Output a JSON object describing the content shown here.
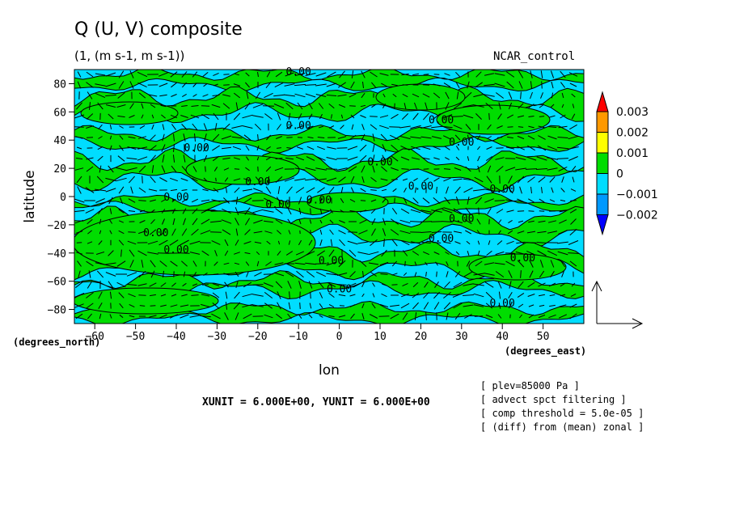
{
  "chart_data": {
    "type": "contour",
    "title": "Q (U, V) composite",
    "subtitle": "(1, (m s-1, m s-1))",
    "dataset": "NCAR_control",
    "xlabel": "lon",
    "ylabel": "latitude",
    "x_unit_label": "(degrees_east)",
    "y_unit_label": "(degrees_north)",
    "xlim": [
      -65,
      60
    ],
    "ylim": [
      -90,
      90
    ],
    "x_ticks": [
      -60,
      -50,
      -40,
      -30,
      -20,
      -10,
      0,
      10,
      20,
      30,
      40,
      50
    ],
    "y_ticks": [
      -80,
      -60,
      -40,
      -20,
      0,
      20,
      40,
      60,
      80
    ],
    "colorbar": {
      "levels": [
        "0.003",
        "0.002",
        "0.001",
        "0",
        "-0.001",
        "-0.002"
      ],
      "colors": [
        "#ff0000",
        "#ff9900",
        "#ffff00",
        "#00dd00",
        "#00ddff",
        "#0099ff",
        "#0000ff"
      ]
    },
    "contour_label": "0.00",
    "contour_label_points": [
      {
        "x": -10,
        "y": 86
      },
      {
        "x": 25,
        "y": 52
      },
      {
        "x": -10,
        "y": 48
      },
      {
        "x": 30,
        "y": 36
      },
      {
        "x": -35,
        "y": 32
      },
      {
        "x": 10,
        "y": 22
      },
      {
        "x": -20,
        "y": 8
      },
      {
        "x": 20,
        "y": 5
      },
      {
        "x": 40,
        "y": 3
      },
      {
        "x": -40,
        "y": -3
      },
      {
        "x": -15,
        "y": -8
      },
      {
        "x": -5,
        "y": -5
      },
      {
        "x": 30,
        "y": -18
      },
      {
        "x": -45,
        "y": -28
      },
      {
        "x": 25,
        "y": -32
      },
      {
        "x": -40,
        "y": -40
      },
      {
        "x": -2,
        "y": -48
      },
      {
        "x": 45,
        "y": -46
      },
      {
        "x": 0,
        "y": -68
      },
      {
        "x": 40,
        "y": -78
      }
    ],
    "vector_reference": {
      "xunit": 6.0,
      "yunit": 6.0
    },
    "xunit_note": "XUNIT = 6.000E+00, YUNIT = 6.000E+00",
    "notes": [
      "[ plev=85000 Pa ]",
      "[ advect spct filtering ]",
      "[ comp threshold = 5.0e-05 ]",
      "[ (diff) from (mean) zonal ]"
    ]
  }
}
